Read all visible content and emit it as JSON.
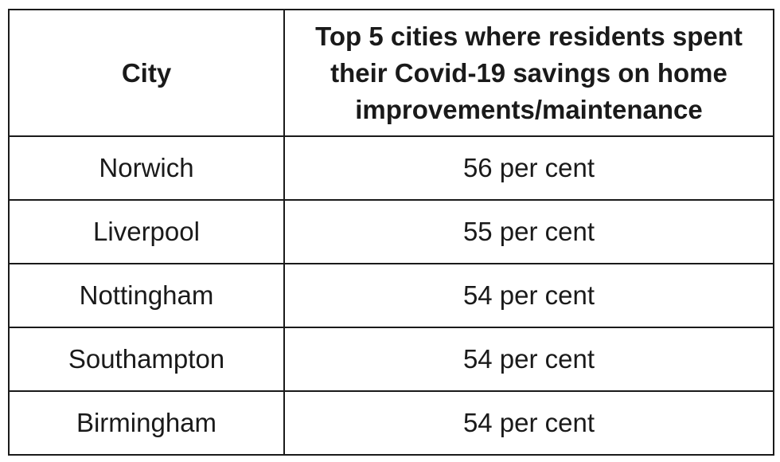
{
  "table": {
    "headers": [
      "City",
      "Top 5 cities where residents spent their Covid-19 savings on home improvements/maintenance"
    ],
    "rows": [
      {
        "city": "Norwich",
        "value": "56 per cent"
      },
      {
        "city": "Liverpool",
        "value": "55 per cent"
      },
      {
        "city": "Nottingham",
        "value": "54 per cent"
      },
      {
        "city": "Southampton",
        "value": "54 per cent"
      },
      {
        "city": "Birmingham",
        "value": "54 per cent"
      }
    ]
  }
}
